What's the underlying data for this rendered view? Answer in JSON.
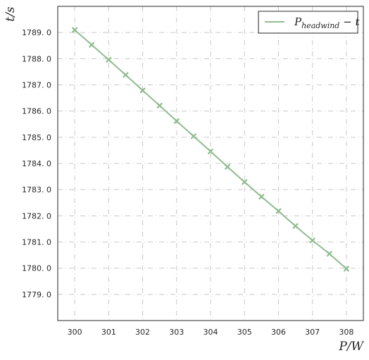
{
  "chart_data": {
    "type": "line",
    "title": "",
    "xlabel": "P/W",
    "ylabel": "t/s",
    "xlim": [
      299.5,
      308.5
    ],
    "ylim": [
      1778.0,
      1790.0
    ],
    "xticks": [
      300,
      301,
      302,
      303,
      304,
      305,
      306,
      307,
      308
    ],
    "yticks": [
      1779.0,
      1780.0,
      1781.0,
      1782.0,
      1783.0,
      1784.0,
      1785.0,
      1786.0,
      1787.0,
      1788.0,
      1789.0
    ],
    "xtick_labels": [
      "300",
      "301",
      "302",
      "303",
      "304",
      "305",
      "306",
      "307",
      "308"
    ],
    "ytick_labels": [
      "1779. 0",
      "1780. 0",
      "1781. 0",
      "1782. 0",
      "1783. 0",
      "1784. 0",
      "1785. 0",
      "1786. 0",
      "1787. 0",
      "1788. 0",
      "1789. 0"
    ],
    "grid": true,
    "legend_position": "top-right",
    "series": [
      {
        "name": "P_headwind − t",
        "color": "#8fbc8f",
        "marker": "x",
        "x": [
          300,
          300.5,
          301,
          301.5,
          302,
          302.5,
          303,
          303.5,
          304,
          304.5,
          305,
          305.5,
          306,
          306.5,
          307,
          307.5,
          308
        ],
        "y": [
          1789.1,
          1788.53,
          1787.96,
          1787.38,
          1786.79,
          1786.21,
          1785.62,
          1785.04,
          1784.46,
          1783.87,
          1783.29,
          1782.73,
          1782.18,
          1781.61,
          1781.06,
          1780.55,
          1779.98
        ]
      }
    ]
  }
}
